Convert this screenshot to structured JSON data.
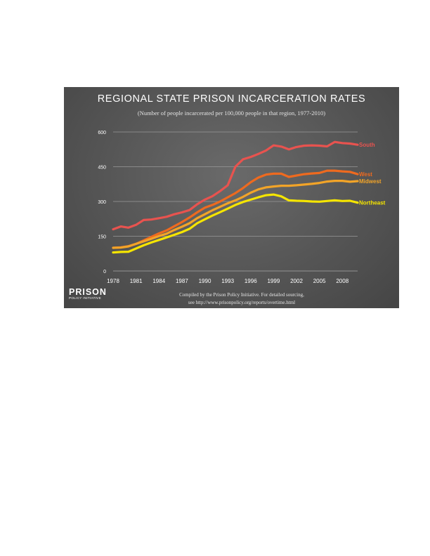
{
  "chart_data": {
    "type": "line",
    "title": "REGIONAL STATE PRISON INCARCERATION RATES",
    "subtitle": "(Number of people incarcerated per 100,000 people in that region, 1977-2010)",
    "xlim": [
      1978,
      2010
    ],
    "ylim": [
      0,
      600
    ],
    "x_ticks": [
      1978,
      1981,
      1984,
      1987,
      1990,
      1993,
      1996,
      1999,
      2002,
      2005,
      2008
    ],
    "y_ticks": [
      0,
      150,
      300,
      450,
      600
    ],
    "grid": true,
    "legend": "labels at line ends (right)",
    "x": [
      1978,
      1979,
      1980,
      1981,
      1982,
      1983,
      1984,
      1985,
      1986,
      1987,
      1988,
      1989,
      1990,
      1991,
      1992,
      1993,
      1994,
      1995,
      1996,
      1997,
      1998,
      1999,
      2000,
      2001,
      2002,
      2003,
      2004,
      2005,
      2006,
      2007,
      2008,
      2009,
      2010
    ],
    "series": [
      {
        "name": "South",
        "color": "#e8534f",
        "values": [
          180,
          192,
          187,
          199,
          220,
          222,
          228,
          234,
          245,
          253,
          263,
          288,
          308,
          323,
          345,
          370,
          450,
          482,
          492,
          505,
          520,
          542,
          537,
          525,
          535,
          541,
          542,
          541,
          538,
          557,
          552,
          550,
          545
        ]
      },
      {
        "name": "West",
        "color": "#ee6a1f",
        "values": [
          100,
          102,
          107,
          117,
          132,
          147,
          162,
          175,
          193,
          211,
          231,
          253,
          273,
          285,
          300,
          318,
          336,
          358,
          383,
          403,
          416,
          420,
          420,
          406,
          412,
          418,
          421,
          423,
          433,
          433,
          430,
          428,
          418
        ]
      },
      {
        "name": "Midwest",
        "color": "#f2a428",
        "values": [
          100,
          101,
          106,
          117,
          128,
          139,
          151,
          161,
          177,
          191,
          206,
          228,
          245,
          262,
          277,
          292,
          305,
          320,
          338,
          352,
          361,
          365,
          368,
          368,
          370,
          373,
          376,
          380,
          386,
          389,
          389,
          385,
          388
        ]
      },
      {
        "name": "Northeast",
        "color": "#f5e500",
        "values": [
          80,
          82,
          83,
          97,
          111,
          123,
          134,
          145,
          156,
          168,
          182,
          206,
          223,
          239,
          254,
          269,
          285,
          298,
          308,
          318,
          327,
          330,
          322,
          305,
          303,
          302,
          300,
          299,
          302,
          305,
          302,
          303,
          295
        ]
      }
    ]
  },
  "footer": {
    "logo_main": "PRISON",
    "logo_sub": "POLICY INITIATIVE",
    "credit_line1": "Compiled by the Prison Policy Initiative. For detailed sourcing,",
    "credit_line2": "see http://www.prisonpolicy.org/reports/overtime.html"
  }
}
